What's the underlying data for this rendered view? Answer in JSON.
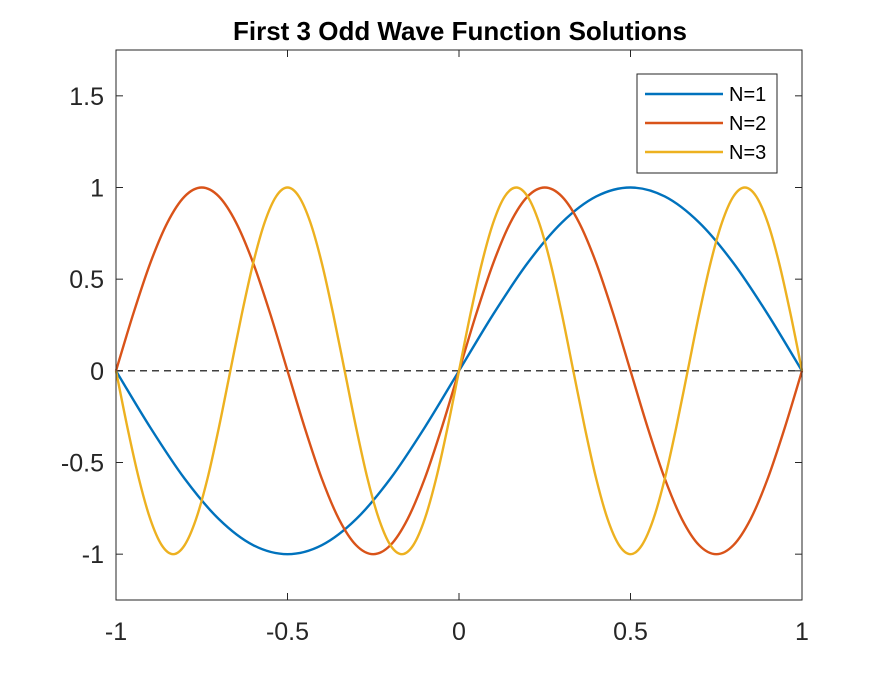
{
  "chart_data": {
    "type": "line",
    "title": "First 3 Odd Wave Function Solutions",
    "xlabel": "",
    "ylabel": "",
    "xlim": [
      -1,
      1
    ],
    "ylim": [
      -1.25,
      1.75
    ],
    "xticks": [
      -1,
      -0.5,
      0,
      0.5,
      1
    ],
    "xtick_labels": [
      "-1",
      "-0.5",
      "0",
      "0.5",
      "1"
    ],
    "yticks": [
      -1,
      -0.5,
      0,
      0.5,
      1,
      1.5
    ],
    "ytick_labels": [
      "-1",
      "-0.5",
      "0",
      "0.5",
      "1",
      "1.5"
    ],
    "grid": false,
    "legend_position": "top-right",
    "reference_line": {
      "y": 0,
      "style": "dashed",
      "color": "#000000"
    },
    "series": [
      {
        "name": "N=1",
        "color": "#0072BD",
        "x": [
          -1,
          -0.9,
          -0.8,
          -0.7,
          -0.6,
          -0.5,
          -0.4,
          -0.3,
          -0.2,
          -0.1,
          0,
          0.1,
          0.2,
          0.3,
          0.4,
          0.5,
          0.6,
          0.7,
          0.8,
          0.9,
          1
        ],
        "y": [
          0,
          -0.309,
          -0.588,
          -0.809,
          -0.951,
          -1,
          -0.951,
          -0.809,
          -0.588,
          -0.309,
          0,
          0.309,
          0.588,
          0.809,
          0.951,
          1,
          0.951,
          0.809,
          0.588,
          0.309,
          0
        ]
      },
      {
        "name": "N=2",
        "color": "#D95319",
        "x": [
          -1,
          -0.95,
          -0.9,
          -0.85,
          -0.8,
          -0.75,
          -0.7,
          -0.65,
          -0.6,
          -0.55,
          -0.5,
          -0.45,
          -0.4,
          -0.35,
          -0.3,
          -0.25,
          -0.2,
          -0.15,
          -0.1,
          -0.05,
          0,
          0.05,
          0.1,
          0.15,
          0.2,
          0.25,
          0.3,
          0.35,
          0.4,
          0.45,
          0.5,
          0.55,
          0.6,
          0.65,
          0.7,
          0.75,
          0.8,
          0.85,
          0.9,
          0.95,
          1
        ],
        "y": [
          0,
          0.309,
          0.588,
          0.809,
          0.951,
          1,
          0.951,
          0.809,
          0.588,
          0.309,
          0,
          -0.309,
          -0.588,
          -0.809,
          -0.951,
          -1,
          -0.951,
          -0.809,
          -0.588,
          -0.309,
          0,
          0.309,
          0.588,
          0.809,
          0.951,
          1,
          0.951,
          0.809,
          0.588,
          0.309,
          0,
          -0.309,
          -0.588,
          -0.809,
          -0.951,
          -1,
          -0.951,
          -0.809,
          -0.588,
          -0.309,
          0
        ]
      },
      {
        "name": "N=3",
        "color": "#EDB120",
        "x": [
          -1,
          -0.9667,
          -0.9333,
          -0.9,
          -0.8667,
          -0.8333,
          -0.8,
          -0.7667,
          -0.7333,
          -0.7,
          -0.6667,
          -0.6333,
          -0.6,
          -0.5667,
          -0.5333,
          -0.5,
          -0.4667,
          -0.4333,
          -0.4,
          -0.3667,
          -0.3333,
          -0.3,
          -0.2667,
          -0.2333,
          -0.2,
          -0.1667,
          -0.1333,
          -0.1,
          -0.0667,
          -0.0333,
          0,
          0.0333,
          0.0667,
          0.1,
          0.1333,
          0.1667,
          0.2,
          0.2333,
          0.2667,
          0.3,
          0.3333,
          0.3667,
          0.4,
          0.4333,
          0.4667,
          0.5,
          0.5333,
          0.5667,
          0.6,
          0.6333,
          0.6667,
          0.7,
          0.7333,
          0.7667,
          0.8,
          0.8333,
          0.8667,
          0.9,
          0.9333,
          0.9667,
          1
        ],
        "y": [
          0,
          -0.309,
          -0.588,
          -0.809,
          -0.951,
          -1,
          -0.951,
          -0.809,
          -0.588,
          -0.309,
          0,
          0.309,
          0.588,
          0.809,
          0.951,
          1,
          0.951,
          0.809,
          0.588,
          0.309,
          0,
          -0.309,
          -0.588,
          -0.809,
          -0.951,
          -1,
          -0.951,
          -0.809,
          -0.588,
          -0.309,
          0,
          0.309,
          0.588,
          0.809,
          0.951,
          1,
          0.951,
          0.809,
          0.588,
          0.309,
          0,
          -0.309,
          -0.588,
          -0.809,
          -0.951,
          -1,
          -0.951,
          -0.809,
          -0.588,
          -0.309,
          0,
          0.309,
          0.588,
          0.809,
          0.951,
          1,
          0.951,
          0.809,
          0.588,
          0.309,
          0
        ]
      }
    ]
  }
}
